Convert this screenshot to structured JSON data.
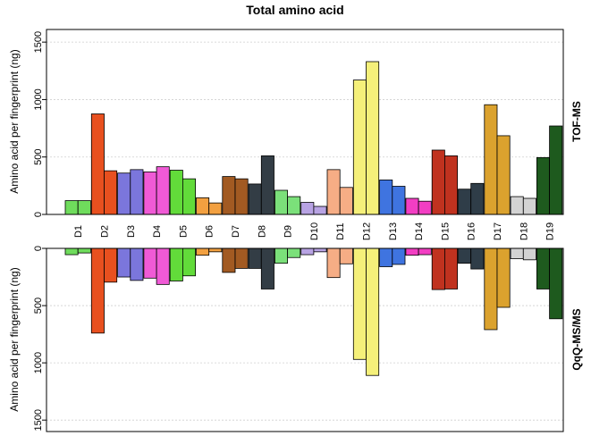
{
  "chart_data": {
    "type": "bar",
    "title": "Total amino acid",
    "ylabel_top": "Amino acid per fingerprint (ng)",
    "ylabel_bottom": "Amino acid per fingerprint (ng)",
    "panel_top_label": "TOF-MS",
    "panel_bottom_label": "QqQ-MS/MS",
    "categories": [
      "D1",
      "D2",
      "D3",
      "D4",
      "D5",
      "D6",
      "D7",
      "D8",
      "D9",
      "D10",
      "D11",
      "D12",
      "D13",
      "D14",
      "D15",
      "D16",
      "D17",
      "D18",
      "D19"
    ],
    "ylim": [
      0,
      1600
    ],
    "yticks": [
      0,
      500,
      1000,
      1500
    ],
    "grid": true,
    "category_colors": [
      "#6fdc5c",
      "#e8501f",
      "#7b76dc",
      "#f05ad6",
      "#62db3a",
      "#f2a040",
      "#a25a22",
      "#333d45",
      "#7be07a",
      "#b8a3e3",
      "#f6ad85",
      "#f5f07a",
      "#3f74e0",
      "#f23ec3",
      "#c0321f",
      "#2f3d48",
      "#dba22e",
      "#d3d3d3",
      "#1e5a1e"
    ],
    "series": [
      {
        "panel": "TOF-MS",
        "values": [
          [
            120,
            120
          ],
          [
            875,
            380
          ],
          [
            360,
            390
          ],
          [
            370,
            415
          ],
          [
            385,
            310
          ],
          [
            145,
            100
          ],
          [
            330,
            310
          ],
          [
            265,
            510
          ],
          [
            210,
            155
          ],
          [
            105,
            70
          ],
          [
            390,
            235
          ],
          [
            1170,
            1330
          ],
          [
            300,
            245
          ],
          [
            140,
            115
          ],
          [
            560,
            510
          ],
          [
            220,
            270
          ],
          [
            955,
            685
          ],
          [
            155,
            140
          ],
          [
            495,
            770
          ]
        ]
      },
      {
        "panel": "QqQ-MS/MS",
        "values": [
          [
            55,
            40
          ],
          [
            740,
            295
          ],
          [
            250,
            280
          ],
          [
            260,
            315
          ],
          [
            285,
            240
          ],
          [
            60,
            30
          ],
          [
            210,
            175
          ],
          [
            175,
            355
          ],
          [
            130,
            80
          ],
          [
            55,
            30
          ],
          [
            255,
            135
          ],
          [
            970,
            1110
          ],
          [
            160,
            140
          ],
          [
            60,
            55
          ],
          [
            360,
            355
          ],
          [
            130,
            180
          ],
          [
            710,
            515
          ],
          [
            90,
            100
          ],
          [
            355,
            615
          ]
        ]
      }
    ]
  }
}
